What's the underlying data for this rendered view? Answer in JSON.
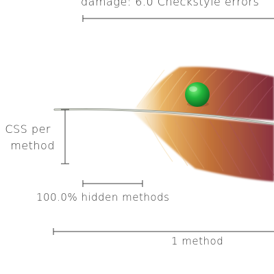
{
  "annotations": {
    "top_label": "damage: 6.0 Checkstyle errors",
    "css_label_line1": "CSS per",
    "css_label_line2": "method",
    "hidden_label": "100.0% hidden methods",
    "method_label": "1 method"
  },
  "colors": {
    "ink": "#3b3b3b",
    "feather_dark": "#8a2f3a",
    "feather_mid": "#c9783a",
    "feather_light": "#e7b15b",
    "ball": "#1fa83a"
  }
}
